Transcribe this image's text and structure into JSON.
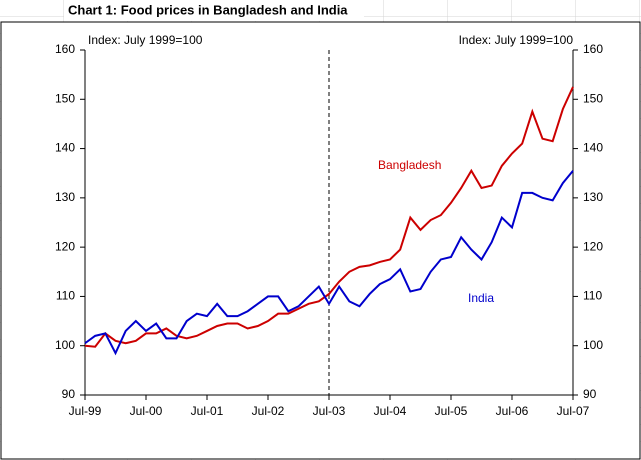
{
  "chart_data": {
    "type": "line",
    "title": "Chart 1: Food prices in Bangladesh and India",
    "y_label": "Index: July 1999=100",
    "y2_label": "Index: July 1999=100",
    "categories": [
      "Jul-99",
      null,
      null,
      null,
      null,
      null,
      "Jul-00",
      null,
      null,
      null,
      null,
      null,
      "Jul-01",
      null,
      null,
      null,
      null,
      null,
      "Jul-02",
      null,
      null,
      null,
      null,
      null,
      "Jul-03",
      null,
      null,
      null,
      null,
      null,
      "Jul-04",
      null,
      null,
      null,
      null,
      null,
      "Jul-05",
      null,
      null,
      null,
      null,
      null,
      "Jul-06",
      null,
      null,
      null,
      null,
      null,
      "Jul-07"
    ],
    "series": [
      {
        "name": "Bangladesh",
        "color": "#cc0000",
        "values": [
          100,
          99.8,
          102.5,
          101,
          100.5,
          101,
          102.5,
          102.5,
          103.5,
          102,
          101.5,
          102,
          103,
          104,
          104.5,
          104.5,
          103.5,
          104,
          105,
          106.5,
          106.5,
          107.5,
          108.5,
          109,
          110.5,
          113,
          115,
          116,
          116.3,
          117,
          117.5,
          119.5,
          126,
          123.5,
          125.5,
          126.5,
          129,
          132,
          135.5,
          132,
          132.5,
          136.5,
          139,
          141,
          147.5,
          142,
          141.5,
          148,
          152.5
        ]
      },
      {
        "name": "India",
        "color": "#0000cc",
        "values": [
          100.5,
          102,
          102.5,
          98.5,
          103,
          105,
          103,
          104.5,
          101.5,
          101.5,
          105,
          106.5,
          106,
          108.5,
          106,
          106,
          107,
          108.5,
          110,
          110,
          107,
          108,
          110,
          112,
          108.5,
          112,
          109,
          108,
          110.5,
          112.5,
          113.5,
          115.5,
          111,
          111.5,
          115,
          117.5,
          118,
          122,
          119.5,
          117.5,
          121,
          126,
          124,
          131,
          131,
          130,
          129.5,
          133,
          135.5
        ]
      }
    ],
    "ylim": [
      90,
      160
    ],
    "yticks": [
      90,
      100,
      110,
      120,
      130,
      140,
      150,
      160
    ],
    "y2lim": [
      90,
      160
    ],
    "y2ticks": [
      90,
      100,
      110,
      120,
      130,
      140,
      150,
      160
    ],
    "grid": false
  }
}
